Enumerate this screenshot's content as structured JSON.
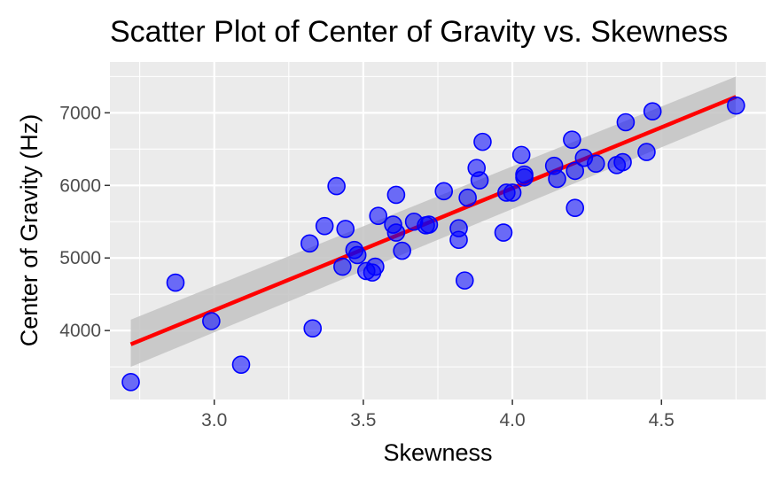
{
  "chart_data": {
    "type": "scatter",
    "title": "Scatter Plot of Center of Gravity vs. Skewness",
    "xlabel": "Skewness",
    "ylabel": "Center of Gravity (Hz)",
    "xlim": [
      2.65,
      4.85
    ],
    "ylim": [
      3050,
      7700
    ],
    "x_ticks": [
      3.0,
      3.5,
      4.0,
      4.5
    ],
    "x_tick_labels": [
      "3.0",
      "3.5",
      "4.0",
      "4.5"
    ],
    "y_ticks": [
      4000,
      5000,
      6000,
      7000
    ],
    "y_tick_labels": [
      "4000",
      "5000",
      "6000",
      "7000"
    ],
    "grid": true,
    "legend": "none",
    "colors": {
      "panel": "#ebebeb",
      "grid": "#ffffff",
      "points": "#0000ff",
      "regression_line": "#ff0000",
      "confidence_band": "#c3c3c3"
    },
    "series": [
      {
        "x": [
          2.72,
          2.87,
          2.99,
          3.09,
          3.32,
          3.33,
          3.37,
          3.41,
          3.43,
          3.44,
          3.47,
          3.48,
          3.51,
          3.53,
          3.54,
          3.55,
          3.6,
          3.61,
          3.61,
          3.63,
          3.67,
          3.71,
          3.72,
          3.77,
          3.82,
          3.82,
          3.84,
          3.85,
          3.88,
          3.89,
          3.9,
          3.97,
          3.98,
          4.0,
          4.03,
          4.04,
          4.04,
          4.14,
          4.15,
          4.2,
          4.21,
          4.21,
          4.24,
          4.28,
          4.35,
          4.37,
          4.38,
          4.45,
          4.47,
          4.75
        ],
        "y": [
          3290,
          4660,
          4130,
          3530,
          5200,
          4030,
          5440,
          5990,
          4880,
          5400,
          5110,
          5040,
          4820,
          4800,
          4880,
          5580,
          5460,
          5350,
          5870,
          5100,
          5500,
          5450,
          5460,
          5920,
          5410,
          5250,
          4690,
          5830,
          6240,
          6070,
          6600,
          5350,
          5900,
          5900,
          6420,
          6150,
          6110,
          6270,
          6090,
          6630,
          5690,
          6200,
          6380,
          6300,
          6280,
          6320,
          6870,
          6460,
          7020,
          7100
        ]
      }
    ],
    "regression": {
      "x_range": [
        2.72,
        4.75
      ],
      "y_range": [
        3810,
        7220
      ],
      "ci_lower": [
        3500,
        6950
      ],
      "ci_upper": [
        4150,
        7500
      ]
    }
  }
}
